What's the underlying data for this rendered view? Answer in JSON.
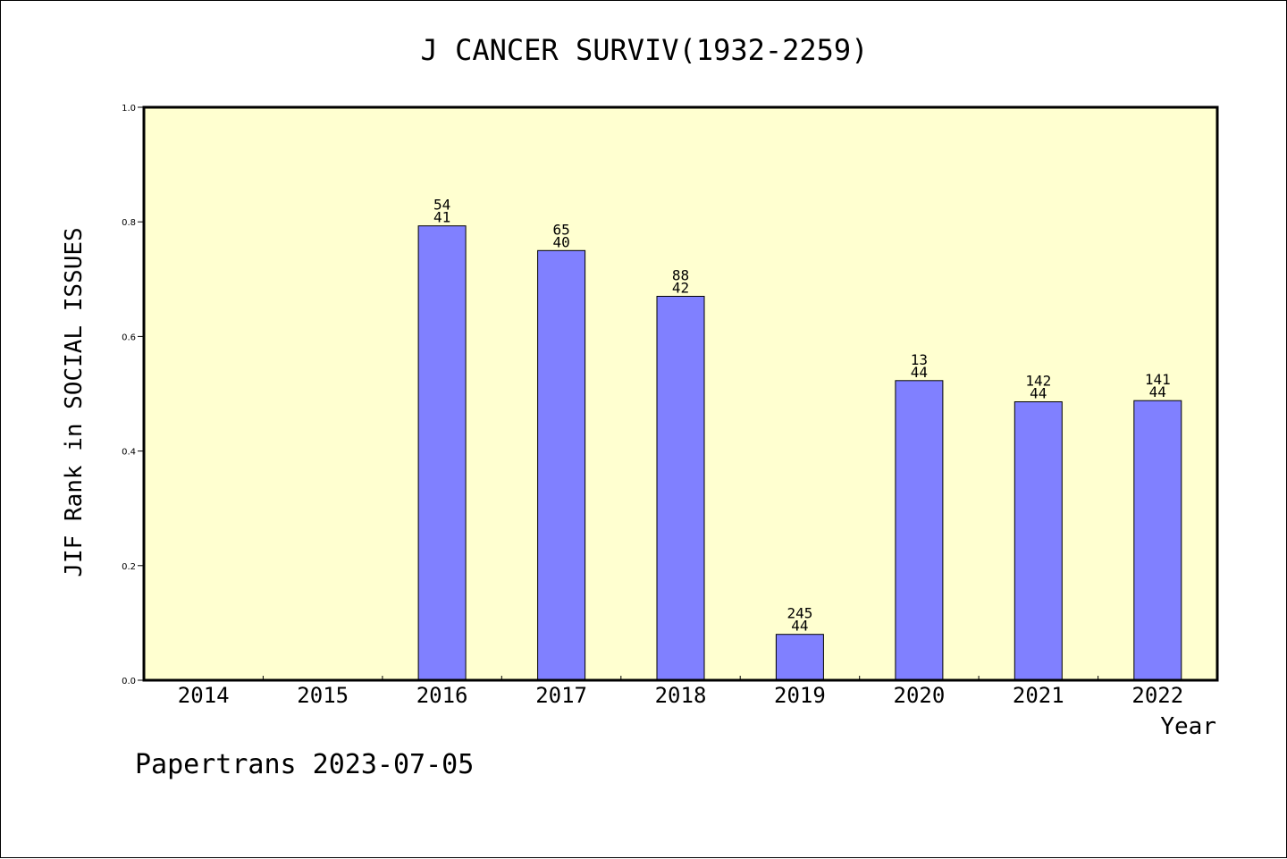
{
  "chart_data": {
    "type": "bar",
    "title": "J CANCER SURVIV(1932-2259)",
    "xlabel": "Year",
    "ylabel": "JIF Rank in SOCIAL ISSUES",
    "ylim": [
      0,
      1.0
    ],
    "yticks": [
      "0.0",
      "0.2",
      "0.4",
      "0.6",
      "0.8",
      "1.0"
    ],
    "categories": [
      "2014",
      "2015",
      "2016",
      "2017",
      "2018",
      "2019",
      "2020",
      "2021",
      "2022"
    ],
    "values": [
      null,
      null,
      0.793,
      0.75,
      0.67,
      0.08,
      0.523,
      0.486,
      0.488
    ],
    "labels_top": [
      "",
      "",
      "54",
      "65",
      "88",
      "245",
      "13",
      "142",
      "141"
    ],
    "labels_bottom": [
      "",
      "",
      "41",
      "40",
      "42",
      "44",
      "44",
      "44",
      "44"
    ],
    "grid": false,
    "colors": {
      "plot_background": "#FFFFD0",
      "bar_fill": "#8080FF",
      "bar_stroke": "#000000"
    }
  },
  "footer": "Papertrans 2023-07-05"
}
